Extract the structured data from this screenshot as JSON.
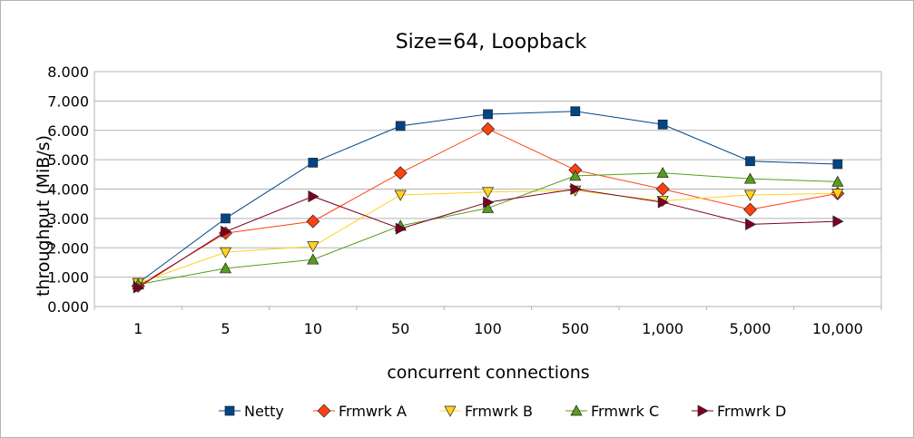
{
  "chart_data": {
    "type": "line",
    "title": "Size=64, Loopback",
    "xlabel": "concurrent connections",
    "ylabel": "throughput (MiB/s)",
    "categories": [
      "1",
      "5",
      "10",
      "50",
      "100",
      "500",
      "1,000",
      "5,000",
      "10,000"
    ],
    "ylim": [
      0,
      8
    ],
    "yticks": [
      "0.000",
      "1.000",
      "2.000",
      "3.000",
      "4.000",
      "5.000",
      "6.000",
      "7.000",
      "8.000"
    ],
    "grid": true,
    "legend_position": "bottom",
    "series": [
      {
        "name": "Netty",
        "color": "#004586",
        "marker": "square",
        "values": [
          0.8,
          3.0,
          4.9,
          6.15,
          6.55,
          6.65,
          6.2,
          4.95,
          4.85
        ]
      },
      {
        "name": "Frmwrk A",
        "color": "#ff420e",
        "marker": "diamond",
        "values": [
          0.7,
          2.5,
          2.9,
          4.55,
          6.05,
          4.65,
          4.0,
          3.3,
          3.85
        ]
      },
      {
        "name": "Frmwrk B",
        "color": "#ffd320",
        "marker": "triangle-down",
        "values": [
          0.8,
          1.85,
          2.05,
          3.8,
          3.9,
          3.95,
          3.6,
          3.8,
          3.85
        ]
      },
      {
        "name": "Frmwrk C",
        "color": "#579d1c",
        "marker": "triangle-up",
        "values": [
          0.75,
          1.3,
          1.6,
          2.75,
          3.35,
          4.45,
          4.55,
          4.35,
          4.25
        ]
      },
      {
        "name": "Frmwrk D",
        "color": "#7e0021",
        "marker": "triangle-right",
        "values": [
          0.65,
          2.55,
          3.75,
          2.65,
          3.55,
          4.0,
          3.55,
          2.8,
          2.9
        ]
      }
    ]
  }
}
